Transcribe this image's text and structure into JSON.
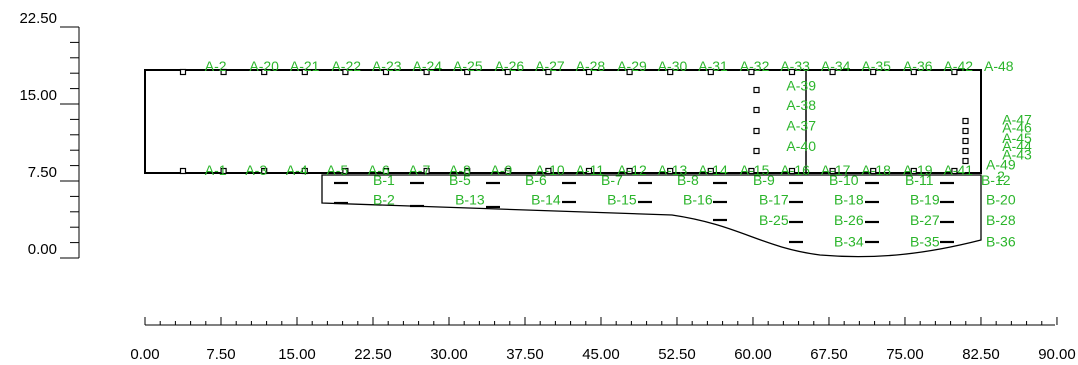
{
  "diagram": {
    "x_axis": {
      "tick_labels": [
        "0.00",
        "7.50",
        "15.00",
        "22.50",
        "30.00",
        "37.50",
        "45.00",
        "52.50",
        "60.00",
        "67.50",
        "75.00",
        "82.50",
        "90.00"
      ],
      "range": [
        0,
        90
      ],
      "major_step": 7.5,
      "minor_step": 1.5
    },
    "y_axis": {
      "tick_labels": [
        "0.00",
        "7.50",
        "15.00",
        "22.50"
      ],
      "range": [
        0,
        22.5
      ],
      "major_step": 7.5,
      "minor_step": 1.5
    },
    "colors": {
      "label": "#2bb52b",
      "line": "#000000"
    },
    "upper_labels": [
      {
        "text": "A-2",
        "x": 5.9,
        "y": 18.2
      },
      {
        "text": "A-20",
        "x": 10.3,
        "y": 18.2
      },
      {
        "text": "A-21",
        "x": 14.3,
        "y": 18.2
      },
      {
        "text": "A-22",
        "x": 18.4,
        "y": 18.2
      },
      {
        "text": "A-23",
        "x": 22.4,
        "y": 18.2
      },
      {
        "text": "A-24",
        "x": 26.4,
        "y": 18.2
      },
      {
        "text": "A-25",
        "x": 30.4,
        "y": 18.2
      },
      {
        "text": "A-26",
        "x": 34.5,
        "y": 18.2
      },
      {
        "text": "A-27",
        "x": 38.5,
        "y": 18.2
      },
      {
        "text": "A-28",
        "x": 42.5,
        "y": 18.2
      },
      {
        "text": "A-29",
        "x": 46.6,
        "y": 18.2
      },
      {
        "text": "A-30",
        "x": 50.6,
        "y": 18.2
      },
      {
        "text": "A-31",
        "x": 54.6,
        "y": 18.2
      },
      {
        "text": "A-32",
        "x": 58.7,
        "y": 18.2
      },
      {
        "text": "A-33",
        "x": 62.7,
        "y": 18.2
      },
      {
        "text": "A-34",
        "x": 66.7,
        "y": 18.2
      },
      {
        "text": "A-35",
        "x": 70.7,
        "y": 18.2
      },
      {
        "text": "A-36",
        "x": 74.8,
        "y": 18.2
      },
      {
        "text": "A-42",
        "x": 78.8,
        "y": 18.2
      },
      {
        "text": "A-48",
        "x": 82.8,
        "y": 18.2
      },
      {
        "text": "A-39",
        "x": 63.3,
        "y": 16.3
      },
      {
        "text": "A-38",
        "x": 63.3,
        "y": 14.4
      },
      {
        "text": "A-37",
        "x": 63.3,
        "y": 12.4
      },
      {
        "text": "A-40",
        "x": 63.3,
        "y": 10.4
      },
      {
        "text": "A-47",
        "x": 84.6,
        "y": 13.0
      },
      {
        "text": "A-46",
        "x": 84.6,
        "y": 12.2
      },
      {
        "text": "A-45",
        "x": 84.6,
        "y": 11.2
      },
      {
        "text": "A-44",
        "x": 84.6,
        "y": 10.4
      },
      {
        "text": "A-43",
        "x": 84.6,
        "y": 9.6
      },
      {
        "text": "A-1",
        "x": 5.9,
        "y": 8.1
      },
      {
        "text": "A-3",
        "x": 9.9,
        "y": 8.1
      },
      {
        "text": "A-4",
        "x": 13.9,
        "y": 8.1
      },
      {
        "text": "A-5",
        "x": 17.9,
        "y": 8.1
      },
      {
        "text": "A-6",
        "x": 22.0,
        "y": 8.1
      },
      {
        "text": "A-7",
        "x": 26.0,
        "y": 8.1
      },
      {
        "text": "A-8",
        "x": 30.0,
        "y": 8.1
      },
      {
        "text": "A-9",
        "x": 34.1,
        "y": 8.1
      },
      {
        "text": "A-10",
        "x": 38.5,
        "y": 8.1
      },
      {
        "text": "A-11",
        "x": 42.5,
        "y": 8.1
      },
      {
        "text": "A-12",
        "x": 46.6,
        "y": 8.1
      },
      {
        "text": "A-13",
        "x": 50.6,
        "y": 8.1
      },
      {
        "text": "A-14",
        "x": 54.6,
        "y": 8.1
      },
      {
        "text": "A-15",
        "x": 58.7,
        "y": 8.1
      },
      {
        "text": "A-16",
        "x": 62.7,
        "y": 8.1
      },
      {
        "text": "A-17",
        "x": 66.7,
        "y": 8.1
      },
      {
        "text": "A-18",
        "x": 70.7,
        "y": 8.1
      },
      {
        "text": "A-19",
        "x": 74.8,
        "y": 8.1
      },
      {
        "text": "A-41",
        "x": 78.8,
        "y": 8.1
      },
      {
        "text": "A-49",
        "x": 83.0,
        "y": 8.6
      },
      {
        "text": "2",
        "x": 84.1,
        "y": 7.5
      }
    ],
    "lower_labels": [
      {
        "text": "B-1",
        "x": 22.5,
        "y": 7.1
      },
      {
        "text": "B-2",
        "x": 22.5,
        "y": 5.2
      },
      {
        "text": "B-5",
        "x": 30.0,
        "y": 7.1
      },
      {
        "text": "B-13",
        "x": 30.6,
        "y": 5.2
      },
      {
        "text": "B-6",
        "x": 37.5,
        "y": 7.1
      },
      {
        "text": "B-14",
        "x": 38.1,
        "y": 5.2
      },
      {
        "text": "B-7",
        "x": 45.0,
        "y": 7.1
      },
      {
        "text": "B-15",
        "x": 45.6,
        "y": 5.2
      },
      {
        "text": "B-8",
        "x": 52.5,
        "y": 7.1
      },
      {
        "text": "B-16",
        "x": 53.1,
        "y": 5.2
      },
      {
        "text": "B-9",
        "x": 60.0,
        "y": 7.1
      },
      {
        "text": "B-17",
        "x": 60.6,
        "y": 5.2
      },
      {
        "text": "B-25",
        "x": 60.6,
        "y": 3.2
      },
      {
        "text": "B-10",
        "x": 67.5,
        "y": 7.1
      },
      {
        "text": "B-18",
        "x": 68.0,
        "y": 5.2
      },
      {
        "text": "B-26",
        "x": 68.0,
        "y": 3.2
      },
      {
        "text": "B-34",
        "x": 68.0,
        "y": 1.1
      },
      {
        "text": "B-11",
        "x": 75.0,
        "y": 7.1
      },
      {
        "text": "B-19",
        "x": 75.5,
        "y": 5.2
      },
      {
        "text": "B-27",
        "x": 75.5,
        "y": 3.2
      },
      {
        "text": "B-35",
        "x": 75.5,
        "y": 1.1
      },
      {
        "text": "B-12",
        "x": 82.5,
        "y": 7.1
      },
      {
        "text": "B-20",
        "x": 83.0,
        "y": 5.2
      },
      {
        "text": "B-28",
        "x": 83.0,
        "y": 3.2
      },
      {
        "text": "B-36",
        "x": 83.0,
        "y": 1.1
      }
    ]
  }
}
